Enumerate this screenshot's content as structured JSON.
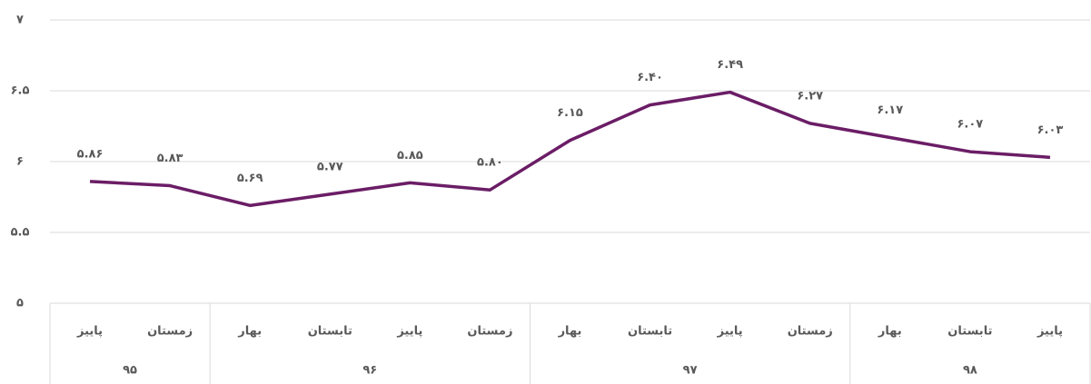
{
  "chart_data": {
    "type": "line",
    "categories": [
      "پاییز",
      "زمستان",
      "بهار",
      "تابستان",
      "پاییز",
      "زمستان",
      "بهار",
      "تابستان",
      "پاییز",
      "زمستان",
      "بهار",
      "تابستان",
      "پاییز"
    ],
    "groups": [
      {
        "label": "۹۵",
        "span": 2
      },
      {
        "label": "۹۶",
        "span": 4
      },
      {
        "label": "۹۷",
        "span": 4
      },
      {
        "label": "۹۸",
        "span": 3
      }
    ],
    "series": [
      {
        "color": "#6b1d66",
        "values": [
          5.86,
          5.83,
          5.69,
          5.77,
          5.85,
          5.8,
          6.15,
          6.4,
          6.49,
          6.27,
          6.17,
          6.07,
          6.03
        ],
        "value_labels": [
          "۵.۸۶",
          "۵.۸۳",
          "۵.۶۹",
          "۵.۷۷",
          "۵.۸۵",
          "۵.۸۰",
          "۶.۱۵",
          "۶.۴۰",
          "۶.۴۹",
          "۶.۲۷",
          "۶.۱۷",
          "۶.۰۷",
          "۶.۰۳"
        ]
      }
    ],
    "ylim": [
      5,
      7
    ],
    "yticks": [
      {
        "value": 5,
        "label": "۵"
      },
      {
        "value": 5.5,
        "label": "۵.۵"
      },
      {
        "value": 6,
        "label": "۶"
      },
      {
        "value": 6.5,
        "label": "۶.۵"
      },
      {
        "value": 7,
        "label": "۷"
      }
    ],
    "grid": true
  }
}
